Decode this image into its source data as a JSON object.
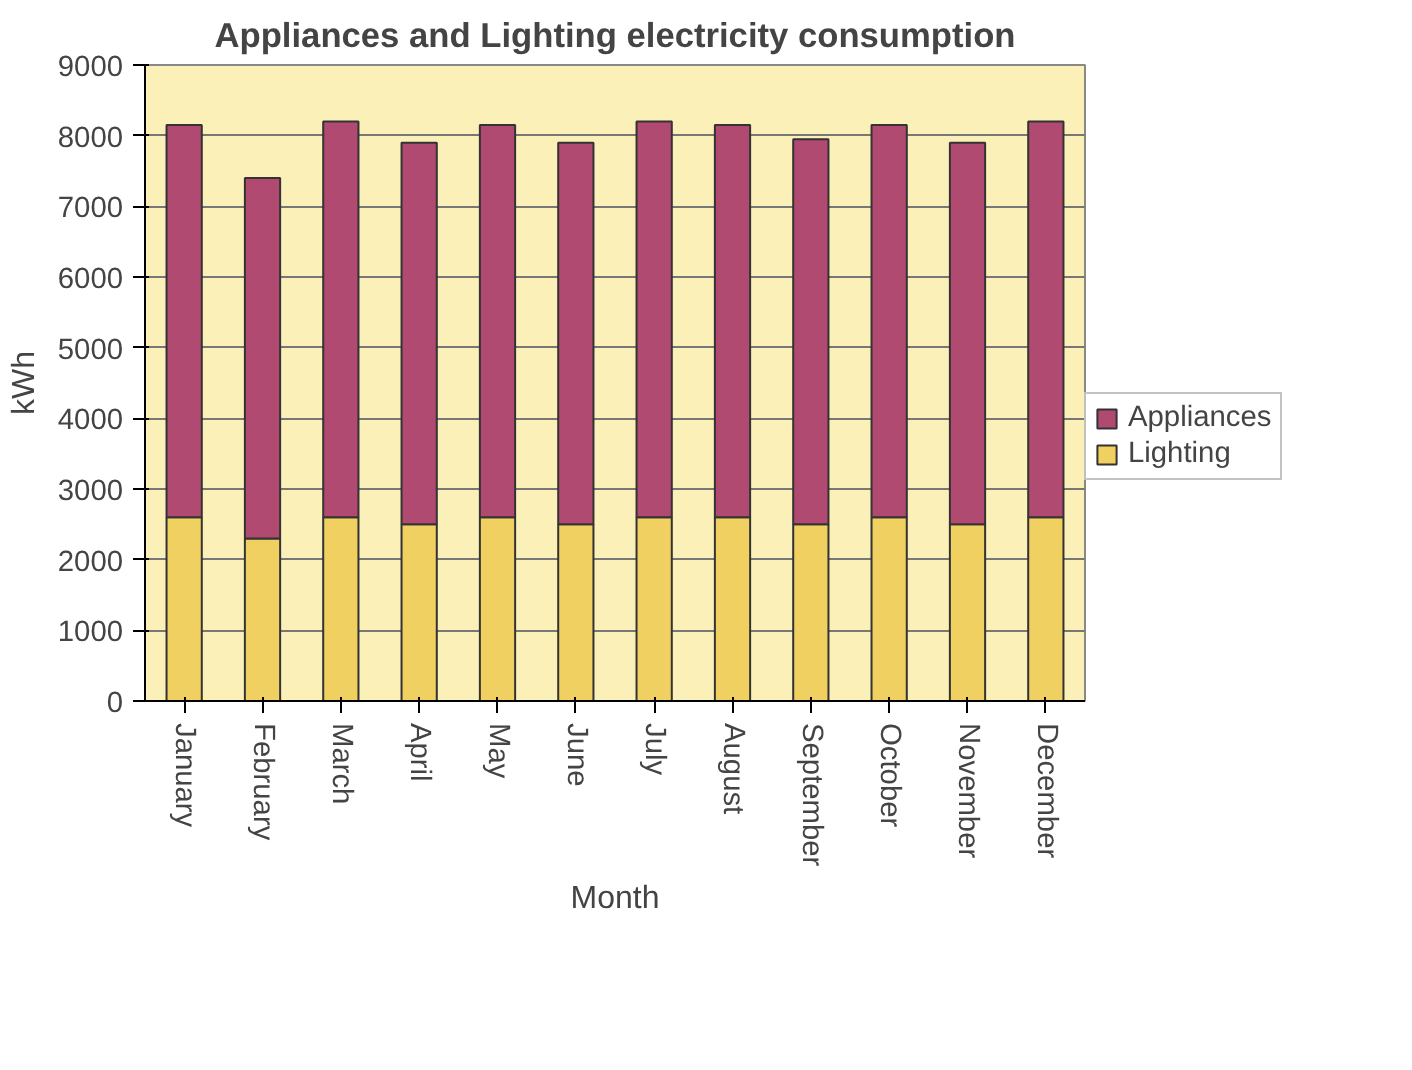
{
  "chart_data": {
    "type": "bar",
    "title": "Appliances and Lighting electricity consumption",
    "xlabel": "Month",
    "ylabel": "kWh",
    "categories": [
      "January",
      "February",
      "March",
      "April",
      "May",
      "June",
      "July",
      "August",
      "September",
      "October",
      "November",
      "December"
    ],
    "series": [
      {
        "name": "Lighting",
        "color": "#f0d060",
        "values": [
          2600,
          2300,
          2600,
          2500,
          2600,
          2500,
          2600,
          2600,
          2500,
          2600,
          2500,
          2600
        ]
      },
      {
        "name": "Appliances",
        "color": "#b04a70",
        "values": [
          5550,
          5100,
          5600,
          5400,
          5550,
          5400,
          5600,
          5550,
          5450,
          5550,
          5400,
          5600
        ]
      }
    ],
    "stacked": true,
    "ylim": [
      0,
      9000
    ],
    "yticks": [
      0,
      1000,
      2000,
      3000,
      4000,
      5000,
      6000,
      7000,
      8000,
      9000
    ],
    "grid": "y",
    "legend": "right"
  }
}
